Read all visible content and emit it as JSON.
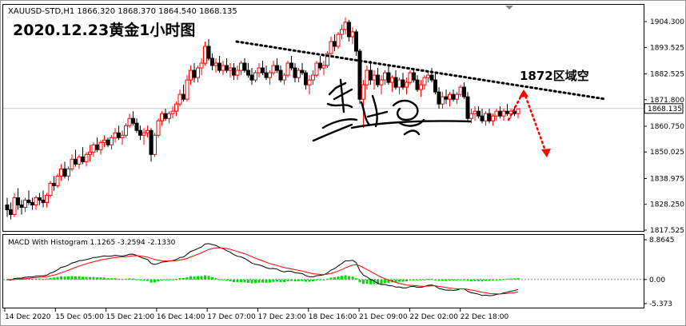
{
  "header": {
    "symbol_ohlc": "XAUUSD-STD,H1  1866.320 1868.370 1864.540 1868.135",
    "title": "2020.12.23黄金1小时图"
  },
  "annotation": {
    "zone_label": "1872区域空"
  },
  "macd": {
    "label": "MACD With Histogram 1.1265 -3.2594 -2.1330",
    "y_ticks": [
      "8.8645",
      "0.00",
      "-5.373"
    ],
    "y_values": [
      8.8645,
      0,
      -5.373
    ]
  },
  "colors": {
    "bull": "#ff0000",
    "bear": "#000000",
    "histogram": "#00dd00",
    "macd_line": "#000000",
    "signal_line": "#ff0000",
    "trendline": "#000000",
    "arrow": "#ff0000",
    "current_price_box": "#ffffff"
  },
  "chart_data": {
    "type": "candlestick",
    "symbol": "XAUUSD-STD",
    "timeframe": "H1",
    "price_axis": {
      "ticks": [
        1904.3,
        1893.525,
        1882.525,
        1871.8,
        1860.75,
        1850.025,
        1838.975,
        1828.25,
        1817.525
      ],
      "tick_labels": [
        "1904.300",
        "1893.525",
        "1882.525",
        "1871.800",
        "1860.750",
        "1850.025",
        "1838.975",
        "1828.250",
        "1817.525"
      ],
      "current_price": 1868.135,
      "current_label": "1868.135",
      "ylim": [
        1817.0,
        1910.0
      ]
    },
    "time_axis": {
      "labels": [
        "14 Dec 2020",
        "15 Dec 05:00",
        "15 Dec 21:00",
        "16 Dec 14:00",
        "17 Dec 07:00",
        "17 Dec 23:00",
        "18 Dec 16:00",
        "21 Dec 09:00",
        "22 Dec 02:00",
        "22 Dec 18:00"
      ]
    },
    "candles": [
      [
        1828,
        1831,
        1823,
        1826
      ],
      [
        1826,
        1829,
        1822,
        1824
      ],
      [
        1824,
        1833,
        1823,
        1831
      ],
      [
        1831,
        1835,
        1826,
        1828
      ],
      [
        1828,
        1830,
        1824,
        1827
      ],
      [
        1827,
        1831,
        1825,
        1830
      ],
      [
        1830,
        1834,
        1828,
        1829
      ],
      [
        1829,
        1831,
        1826,
        1828
      ],
      [
        1828,
        1832,
        1826,
        1831
      ],
      [
        1831,
        1833,
        1828,
        1830
      ],
      [
        1830,
        1834,
        1827,
        1829
      ],
      [
        1829,
        1833,
        1827,
        1832
      ],
      [
        1832,
        1838,
        1831,
        1837
      ],
      [
        1837,
        1840,
        1834,
        1836
      ],
      [
        1836,
        1841,
        1835,
        1840
      ],
      [
        1840,
        1845,
        1838,
        1843
      ],
      [
        1843,
        1846,
        1839,
        1840
      ],
      [
        1840,
        1844,
        1838,
        1843
      ],
      [
        1843,
        1849,
        1842,
        1847
      ],
      [
        1847,
        1851,
        1844,
        1845
      ],
      [
        1845,
        1849,
        1843,
        1848
      ],
      [
        1848,
        1852,
        1845,
        1846
      ],
      [
        1846,
        1850,
        1844,
        1849
      ],
      [
        1849,
        1853,
        1846,
        1850
      ],
      [
        1850,
        1854,
        1848,
        1853
      ],
      [
        1853,
        1856,
        1850,
        1851
      ],
      [
        1851,
        1855,
        1849,
        1854
      ],
      [
        1854,
        1857,
        1852,
        1855
      ],
      [
        1855,
        1856,
        1852,
        1853
      ],
      [
        1853,
        1857,
        1851,
        1856
      ],
      [
        1856,
        1860,
        1854,
        1858
      ],
      [
        1858,
        1861,
        1855,
        1856
      ],
      [
        1856,
        1859,
        1853,
        1857
      ],
      [
        1857,
        1862,
        1856,
        1861
      ],
      [
        1861,
        1866,
        1860,
        1864
      ],
      [
        1864,
        1867,
        1861,
        1862
      ],
      [
        1862,
        1864,
        1858,
        1859
      ],
      [
        1859,
        1861,
        1855,
        1857
      ],
      [
        1857,
        1860,
        1853,
        1858
      ],
      [
        1858,
        1861,
        1856,
        1859
      ],
      [
        1859,
        1860,
        1846,
        1849
      ],
      [
        1849,
        1858,
        1848,
        1857
      ],
      [
        1857,
        1864,
        1856,
        1863
      ],
      [
        1863,
        1867,
        1861,
        1866
      ],
      [
        1866,
        1868,
        1863,
        1864
      ],
      [
        1864,
        1867,
        1862,
        1866
      ],
      [
        1866,
        1869,
        1864,
        1867
      ],
      [
        1867,
        1871,
        1865,
        1870
      ],
      [
        1870,
        1876,
        1869,
        1874
      ],
      [
        1874,
        1878,
        1871,
        1872
      ],
      [
        1872,
        1882,
        1871,
        1880
      ],
      [
        1880,
        1886,
        1878,
        1884
      ],
      [
        1884,
        1887,
        1879,
        1881
      ],
      [
        1881,
        1886,
        1879,
        1885
      ],
      [
        1885,
        1889,
        1882,
        1887
      ],
      [
        1887,
        1896,
        1886,
        1894
      ],
      [
        1894,
        1897,
        1888,
        1889
      ],
      [
        1889,
        1891,
        1884,
        1886
      ],
      [
        1886,
        1889,
        1883,
        1887
      ],
      [
        1887,
        1890,
        1883,
        1884
      ],
      [
        1884,
        1888,
        1882,
        1886
      ],
      [
        1886,
        1889,
        1883,
        1884
      ],
      [
        1884,
        1887,
        1881,
        1885
      ],
      [
        1885,
        1887,
        1880,
        1882
      ],
      [
        1882,
        1886,
        1880,
        1884
      ],
      [
        1884,
        1888,
        1882,
        1887
      ],
      [
        1887,
        1889,
        1883,
        1884
      ],
      [
        1884,
        1887,
        1881,
        1882
      ],
      [
        1882,
        1885,
        1878,
        1880
      ],
      [
        1880,
        1884,
        1879,
        1883
      ],
      [
        1883,
        1887,
        1881,
        1885
      ],
      [
        1885,
        1888,
        1882,
        1883
      ],
      [
        1883,
        1886,
        1880,
        1881
      ],
      [
        1881,
        1884,
        1878,
        1883
      ],
      [
        1883,
        1888,
        1882,
        1886
      ],
      [
        1886,
        1889,
        1883,
        1884
      ],
      [
        1884,
        1886,
        1879,
        1880
      ],
      [
        1880,
        1883,
        1878,
        1882
      ],
      [
        1882,
        1888,
        1881,
        1887
      ],
      [
        1887,
        1890,
        1884,
        1885
      ],
      [
        1885,
        1887,
        1879,
        1881
      ],
      [
        1881,
        1885,
        1879,
        1884
      ],
      [
        1884,
        1887,
        1882,
        1883
      ],
      [
        1883,
        1884,
        1876,
        1878
      ],
      [
        1878,
        1882,
        1874,
        1880
      ],
      [
        1880,
        1884,
        1878,
        1882
      ],
      [
        1882,
        1888,
        1881,
        1887
      ],
      [
        1887,
        1890,
        1884,
        1885
      ],
      [
        1885,
        1888,
        1882,
        1886
      ],
      [
        1886,
        1892,
        1885,
        1891
      ],
      [
        1891,
        1898,
        1890,
        1896
      ],
      [
        1896,
        1899,
        1892,
        1894
      ],
      [
        1894,
        1900,
        1893,
        1899
      ],
      [
        1899,
        1903,
        1897,
        1901
      ],
      [
        1901,
        1906,
        1899,
        1904
      ],
      [
        1904,
        1905,
        1896,
        1898
      ],
      [
        1898,
        1902,
        1895,
        1900
      ],
      [
        1900,
        1901,
        1890,
        1892
      ],
      [
        1892,
        1893,
        1870,
        1872
      ],
      [
        1872,
        1880,
        1860,
        1878
      ],
      [
        1878,
        1886,
        1876,
        1884
      ],
      [
        1884,
        1888,
        1878,
        1880
      ],
      [
        1880,
        1884,
        1876,
        1882
      ],
      [
        1882,
        1885,
        1877,
        1878
      ],
      [
        1878,
        1882,
        1874,
        1880
      ],
      [
        1880,
        1884,
        1878,
        1883
      ],
      [
        1883,
        1886,
        1878,
        1879
      ],
      [
        1879,
        1882,
        1875,
        1881
      ],
      [
        1881,
        1884,
        1876,
        1877
      ],
      [
        1877,
        1881,
        1874,
        1880
      ],
      [
        1880,
        1883,
        1876,
        1877
      ],
      [
        1877,
        1881,
        1874,
        1879
      ],
      [
        1879,
        1884,
        1878,
        1883
      ],
      [
        1883,
        1885,
        1879,
        1880
      ],
      [
        1880,
        1882,
        1875,
        1876
      ],
      [
        1876,
        1880,
        1873,
        1878
      ],
      [
        1878,
        1882,
        1876,
        1881
      ],
      [
        1881,
        1884,
        1879,
        1882
      ],
      [
        1882,
        1885,
        1879,
        1880
      ],
      [
        1880,
        1883,
        1874,
        1875
      ],
      [
        1875,
        1877,
        1868,
        1870
      ],
      [
        1870,
        1875,
        1868,
        1873
      ],
      [
        1873,
        1876,
        1870,
        1872
      ],
      [
        1872,
        1875,
        1869,
        1874
      ],
      [
        1874,
        1876,
        1871,
        1872
      ],
      [
        1872,
        1875,
        1870,
        1874
      ],
      [
        1874,
        1878,
        1873,
        1877
      ],
      [
        1877,
        1879,
        1872,
        1873
      ],
      [
        1873,
        1875,
        1863,
        1864
      ],
      [
        1864,
        1868,
        1862,
        1866
      ],
      [
        1866,
        1869,
        1863,
        1867
      ],
      [
        1867,
        1869,
        1864,
        1865
      ],
      [
        1865,
        1868,
        1862,
        1863
      ],
      [
        1863,
        1867,
        1861,
        1866
      ],
      [
        1866,
        1868,
        1862,
        1863
      ],
      [
        1863,
        1866,
        1861,
        1865
      ],
      [
        1865,
        1868,
        1863,
        1867
      ],
      [
        1867,
        1869,
        1864,
        1865
      ],
      [
        1865,
        1868,
        1863,
        1867
      ],
      [
        1867,
        1870,
        1865,
        1866
      ],
      [
        1866,
        1868,
        1864,
        1867
      ],
      [
        1867,
        1869,
        1865,
        1866
      ],
      [
        1866,
        1868,
        1864,
        1868
      ]
    ],
    "trendline": {
      "from_time": "17 Dec 07:00",
      "from_price": 1896,
      "to_price": 1868,
      "style": "dotted"
    }
  }
}
